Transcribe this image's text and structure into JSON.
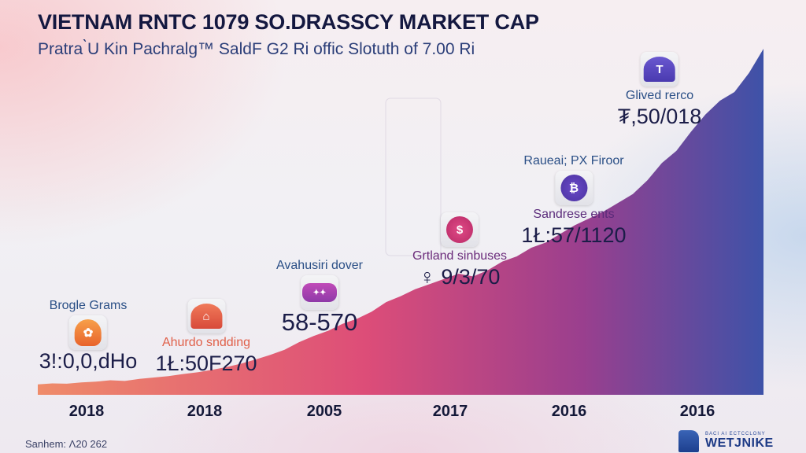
{
  "header": {
    "title": "VIETNAM RNTC 1079 SO.DRASSCY MARKET CAP",
    "subtitle": "Pratra ̀U Kin Pachralg™ SaldF G2 Ri offic Slotuth of 7.00 Ri"
  },
  "colors": {
    "gradient_start": "#ee8a6a",
    "gradient_mid": "#d9477e",
    "gradient_end": "#3f4fa8",
    "title": "#141840",
    "label_blue": "#2a4f86"
  },
  "chart_data": {
    "type": "area",
    "title": "VIETNAM RNTC 1079 SO.DRASSCY MARKET CAP",
    "subtitle": "Pratra ̀U Kin Pachralg™ SaldF G2 Ri offic Slotuth of 7.00 Ri",
    "xlabel": "",
    "ylabel": "",
    "x_tick_labels": [
      "2018",
      "2018",
      "2005",
      "2017",
      "2016",
      "2016"
    ],
    "grid": false,
    "legend": "none",
    "ylim": [
      0,
      100
    ],
    "series": [
      {
        "name": "Market cap",
        "x": [
          0,
          2,
          4,
          6,
          8,
          10,
          12,
          14,
          16,
          18,
          20,
          22,
          24,
          26,
          28,
          30,
          32,
          34,
          36,
          38,
          40,
          42,
          44,
          46,
          48,
          50,
          52,
          54,
          56,
          58,
          60,
          62,
          64,
          66,
          68,
          70,
          72,
          74,
          76,
          78,
          80,
          82,
          84,
          86,
          88,
          90,
          92,
          94,
          96,
          98,
          100
        ],
        "values": [
          3,
          3.3,
          3.2,
          3.6,
          3.8,
          4.2,
          4.0,
          4.6,
          5.0,
          5.4,
          6.0,
          6.5,
          7.2,
          8.0,
          9.0,
          10.2,
          11.5,
          13.0,
          15.2,
          17.0,
          18.5,
          20.5,
          22.0,
          24.0,
          26.8,
          28.5,
          30.5,
          32.0,
          33.5,
          35.0,
          34.2,
          36.0,
          38.5,
          40.0,
          42.5,
          44.0,
          46.5,
          49.0,
          51.0,
          53.0,
          55.5,
          58.0,
          62.0,
          67.0,
          70.5,
          76.0,
          81.0,
          85.0,
          87.5,
          93.0,
          100
        ]
      }
    ],
    "annotations": [
      {
        "label": "Brogle Grams",
        "value": "3!:0,0,dHo",
        "icon": "temple-fan-icon"
      },
      {
        "label": "Ahurdo sndding",
        "value": "1Ł:50F270",
        "icon": "pagoda-icon"
      },
      {
        "label": "Avahusiri dover",
        "value": "58-570",
        "icon": "banner-icon"
      },
      {
        "label": "Grtland sinbuses",
        "value": "♀ 9/3/70",
        "icon": "dollar-coin-icon"
      },
      {
        "label": "Raueai; PX Firoor",
        "sublabel": "Sandrese ents",
        "value": "1Ł:57/1120",
        "icon": "robot-coin-icon"
      },
      {
        "label": "Glived rerco",
        "value": "₮,50/018",
        "icon": "arch-seal-icon"
      }
    ]
  },
  "footer": {
    "source": "Sanhem: Λ20 262",
    "logo_small": "BACI AI ECTCCLONY",
    "logo_name": "WETJNIKE"
  }
}
